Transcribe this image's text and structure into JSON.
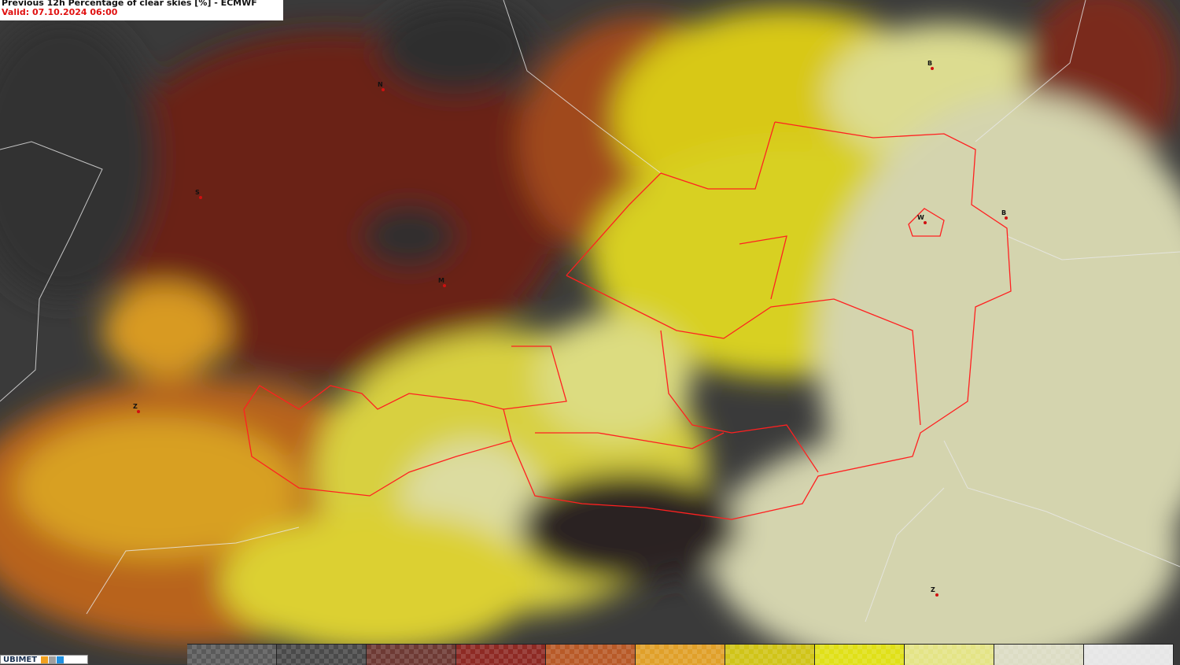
{
  "header": {
    "title": "Previous 12h Percentage of clear skies [%] - ECMWF",
    "valid": "Valid: 07.10.2024 06:00"
  },
  "cities": [
    {
      "label": "N"
    },
    {
      "label": "S"
    },
    {
      "label": "M"
    },
    {
      "label": "Z"
    },
    {
      "label": "B"
    },
    {
      "label": "W"
    },
    {
      "label": "B"
    },
    {
      "label": "Z"
    }
  ],
  "legend": {
    "colors": [
      "#5a5a5a",
      "#4a4a4a",
      "#6e3a34",
      "#8e2a24",
      "#b85a28",
      "#e0a02a",
      "#d0c418",
      "#e0e018",
      "#e4e486",
      "#dcdcc4",
      "#e6e6e6"
    ]
  },
  "logo": {
    "text": "UBIMET",
    "icon_colors": [
      "#f0a020",
      "#a0a0a0",
      "#2090e0"
    ]
  },
  "colors": {
    "border": "#ff2020",
    "title_valid": "#e01010"
  }
}
